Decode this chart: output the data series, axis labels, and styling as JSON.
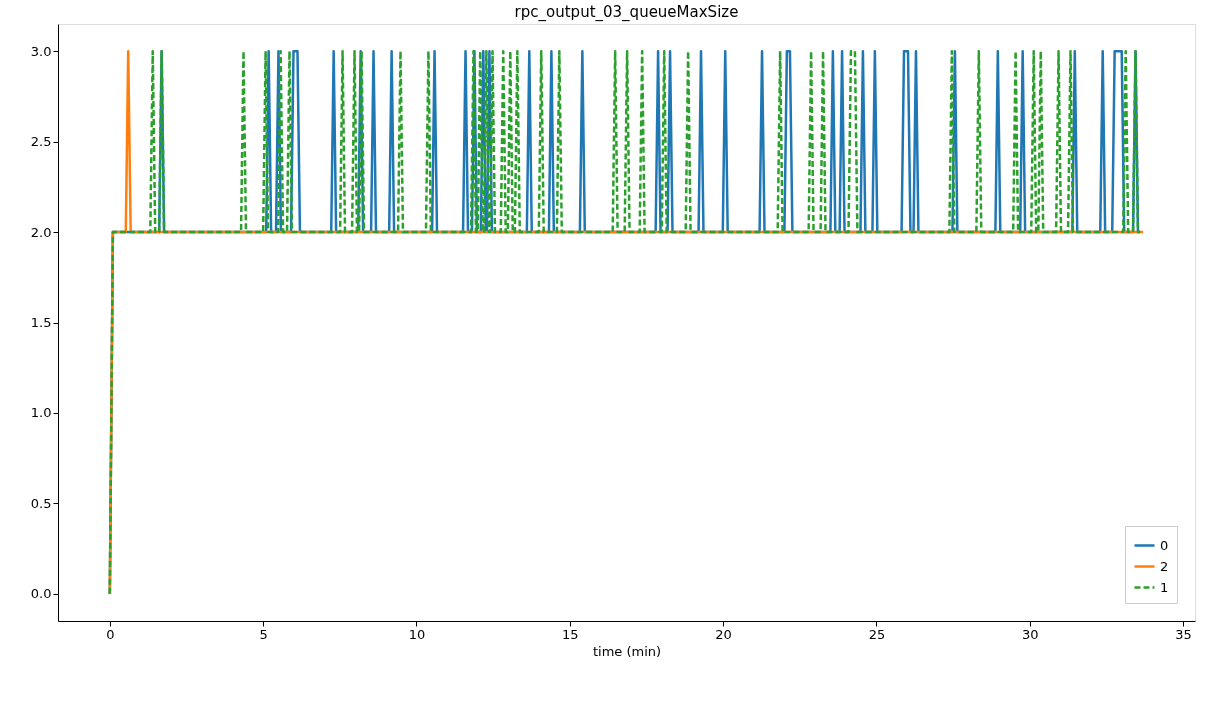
{
  "chart_data": {
    "type": "line",
    "title": "rpc_output_03_queueMaxSize",
    "xlabel": "time (min)",
    "xlim": [
      -1.69,
      35.39
    ],
    "xticks": [
      0,
      5,
      10,
      15,
      20,
      25,
      30,
      35
    ],
    "ylim": [
      -0.15,
      3.15
    ],
    "yticks": [
      {
        "value": 0,
        "label": "0.0"
      },
      {
        "value": 0.5,
        "label": "0.5"
      },
      {
        "value": 1,
        "label": "1.0"
      },
      {
        "value": 1.5,
        "label": "1.5"
      },
      {
        "value": 2,
        "label": "2.0"
      },
      {
        "value": 2.5,
        "label": "2.5"
      },
      {
        "value": 3,
        "label": "3.0"
      }
    ],
    "grid": false,
    "legend": "bottom right",
    "series": [
      {
        "name": "0",
        "color": "#1f77b4",
        "line_style": "solid",
        "x": [
          0,
          0.1,
          1.61,
          1.69,
          1.77,
          5.1,
          5.18,
          5.26,
          5.42,
          5.5,
          5.58,
          5.91,
          5.99,
          6.12,
          6.2,
          7.22,
          7.3,
          7.38,
          8.1,
          8.18,
          8.26,
          8.52,
          8.6,
          8.68,
          9.11,
          9.19,
          9.27,
          10.51,
          10.59,
          10.67,
          11.52,
          11.6,
          11.68,
          11.81,
          11.89,
          11.97,
          12.1,
          12.18,
          12.26,
          12.3,
          12.38,
          12.46,
          13.6,
          13.68,
          13.76,
          14.32,
          14.4,
          14.48,
          15.33,
          15.41,
          15.49,
          17.8,
          17.88,
          17.96,
          18.19,
          18.27,
          18.35,
          19.2,
          19.28,
          19.36,
          19.99,
          20.07,
          20.15,
          21.19,
          21.27,
          21.35,
          22.0,
          22.08,
          22.18,
          22.26,
          23.5,
          23.58,
          23.66,
          23.8,
          23.88,
          23.96,
          24.48,
          24.56,
          24.64,
          24.87,
          24.95,
          25.03,
          25.82,
          25.9,
          26.03,
          26.11,
          26.21,
          26.29,
          26.37,
          27.48,
          27.56,
          27.64,
          28.88,
          28.96,
          29.04,
          29.69,
          29.77,
          29.85,
          31.39,
          31.47,
          31.55,
          32.3,
          32.38,
          32.46,
          32.69,
          32.77,
          33.0,
          33.08,
          33.37,
          33.45,
          33.53,
          33.6
        ],
        "values": [
          0,
          2,
          2,
          3,
          2,
          2,
          3,
          2,
          2,
          3,
          2,
          2,
          3,
          3,
          2,
          2,
          3,
          2,
          2,
          3,
          2,
          2,
          3,
          2,
          2,
          3,
          2,
          2,
          3,
          2,
          2,
          3,
          2,
          2,
          3,
          2,
          2,
          3,
          2,
          2,
          3,
          2,
          2,
          3,
          2,
          2,
          3,
          2,
          2,
          3,
          2,
          2,
          3,
          2,
          2,
          3,
          2,
          2,
          3,
          2,
          2,
          3,
          2,
          2,
          3,
          2,
          2,
          3,
          3,
          2,
          2,
          3,
          2,
          2,
          3,
          2,
          2,
          3,
          2,
          2,
          3,
          2,
          2,
          3,
          3,
          2,
          2,
          3,
          2,
          2,
          3,
          2,
          2,
          3,
          2,
          2,
          3,
          2,
          2,
          3,
          2,
          2,
          3,
          2,
          2,
          3,
          3,
          2,
          2,
          3,
          2,
          2
        ]
      },
      {
        "name": "2",
        "color": "#ff7f0e",
        "line_style": "solid",
        "x": [
          0,
          0.1,
          0.52,
          0.6,
          0.68,
          33.7
        ],
        "values": [
          0,
          2,
          2,
          3,
          2,
          2
        ]
      },
      {
        "name": "1",
        "color": "#2ca02c",
        "line_style": "dashed",
        "x": [
          0,
          0.1,
          1.32,
          1.4,
          1.48,
          1.61,
          1.69,
          1.77,
          4.28,
          4.36,
          4.44,
          5.0,
          5.08,
          5.16,
          5.49,
          5.57,
          5.65,
          5.78,
          5.86,
          5.94,
          7.51,
          7.59,
          7.67,
          7.9,
          7.98,
          8.06,
          8.13,
          8.21,
          8.29,
          9.4,
          9.48,
          9.56,
          10.31,
          10.39,
          10.47,
          11.78,
          11.86,
          11.94,
          12.0,
          12.08,
          12.16,
          12.2,
          12.28,
          12.36,
          12.4,
          12.48,
          12.56,
          12.75,
          12.83,
          12.91,
          12.98,
          13.06,
          13.14,
          13.21,
          13.29,
          13.37,
          13.99,
          14.07,
          14.15,
          14.58,
          14.66,
          14.74,
          16.4,
          16.48,
          16.56,
          16.79,
          16.87,
          16.95,
          17.28,
          17.36,
          17.44,
          18.0,
          18.08,
          18.16,
          18.78,
          18.86,
          18.94,
          21.78,
          21.86,
          21.94,
          22.79,
          22.87,
          22.95,
          23.18,
          23.26,
          23.34,
          24.09,
          24.17,
          24.3,
          24.38,
          27.38,
          27.46,
          27.54,
          28.26,
          28.34,
          28.42,
          29.46,
          29.54,
          29.62,
          30.05,
          30.13,
          30.21,
          30.28,
          30.36,
          30.44,
          30.86,
          30.94,
          31.02,
          31.25,
          31.33,
          31.41,
          33.05,
          33.13,
          33.21,
          33.37,
          33.45,
          33.53,
          33.6
        ],
        "values": [
          0,
          2,
          2,
          3,
          2,
          2,
          3,
          2,
          2,
          3,
          2,
          2,
          3,
          2,
          2,
          3,
          2,
          2,
          3,
          2,
          2,
          3,
          2,
          2,
          3,
          2,
          2,
          3,
          2,
          2,
          3,
          2,
          2,
          3,
          2,
          2,
          3,
          2,
          2,
          3,
          2,
          2,
          3,
          2,
          2,
          3,
          2,
          2,
          3,
          2,
          2,
          3,
          2,
          2,
          3,
          2,
          2,
          3,
          2,
          2,
          3,
          2,
          2,
          3,
          2,
          2,
          3,
          2,
          2,
          3,
          2,
          2,
          3,
          2,
          2,
          3,
          2,
          2,
          3,
          2,
          2,
          3,
          2,
          2,
          3,
          2,
          2,
          3,
          3,
          2,
          2,
          3,
          2,
          2,
          3,
          2,
          2,
          3,
          2,
          2,
          3,
          2,
          2,
          3,
          2,
          2,
          3,
          2,
          2,
          3,
          2,
          2,
          3,
          2,
          2,
          3,
          2,
          2
        ]
      }
    ]
  }
}
